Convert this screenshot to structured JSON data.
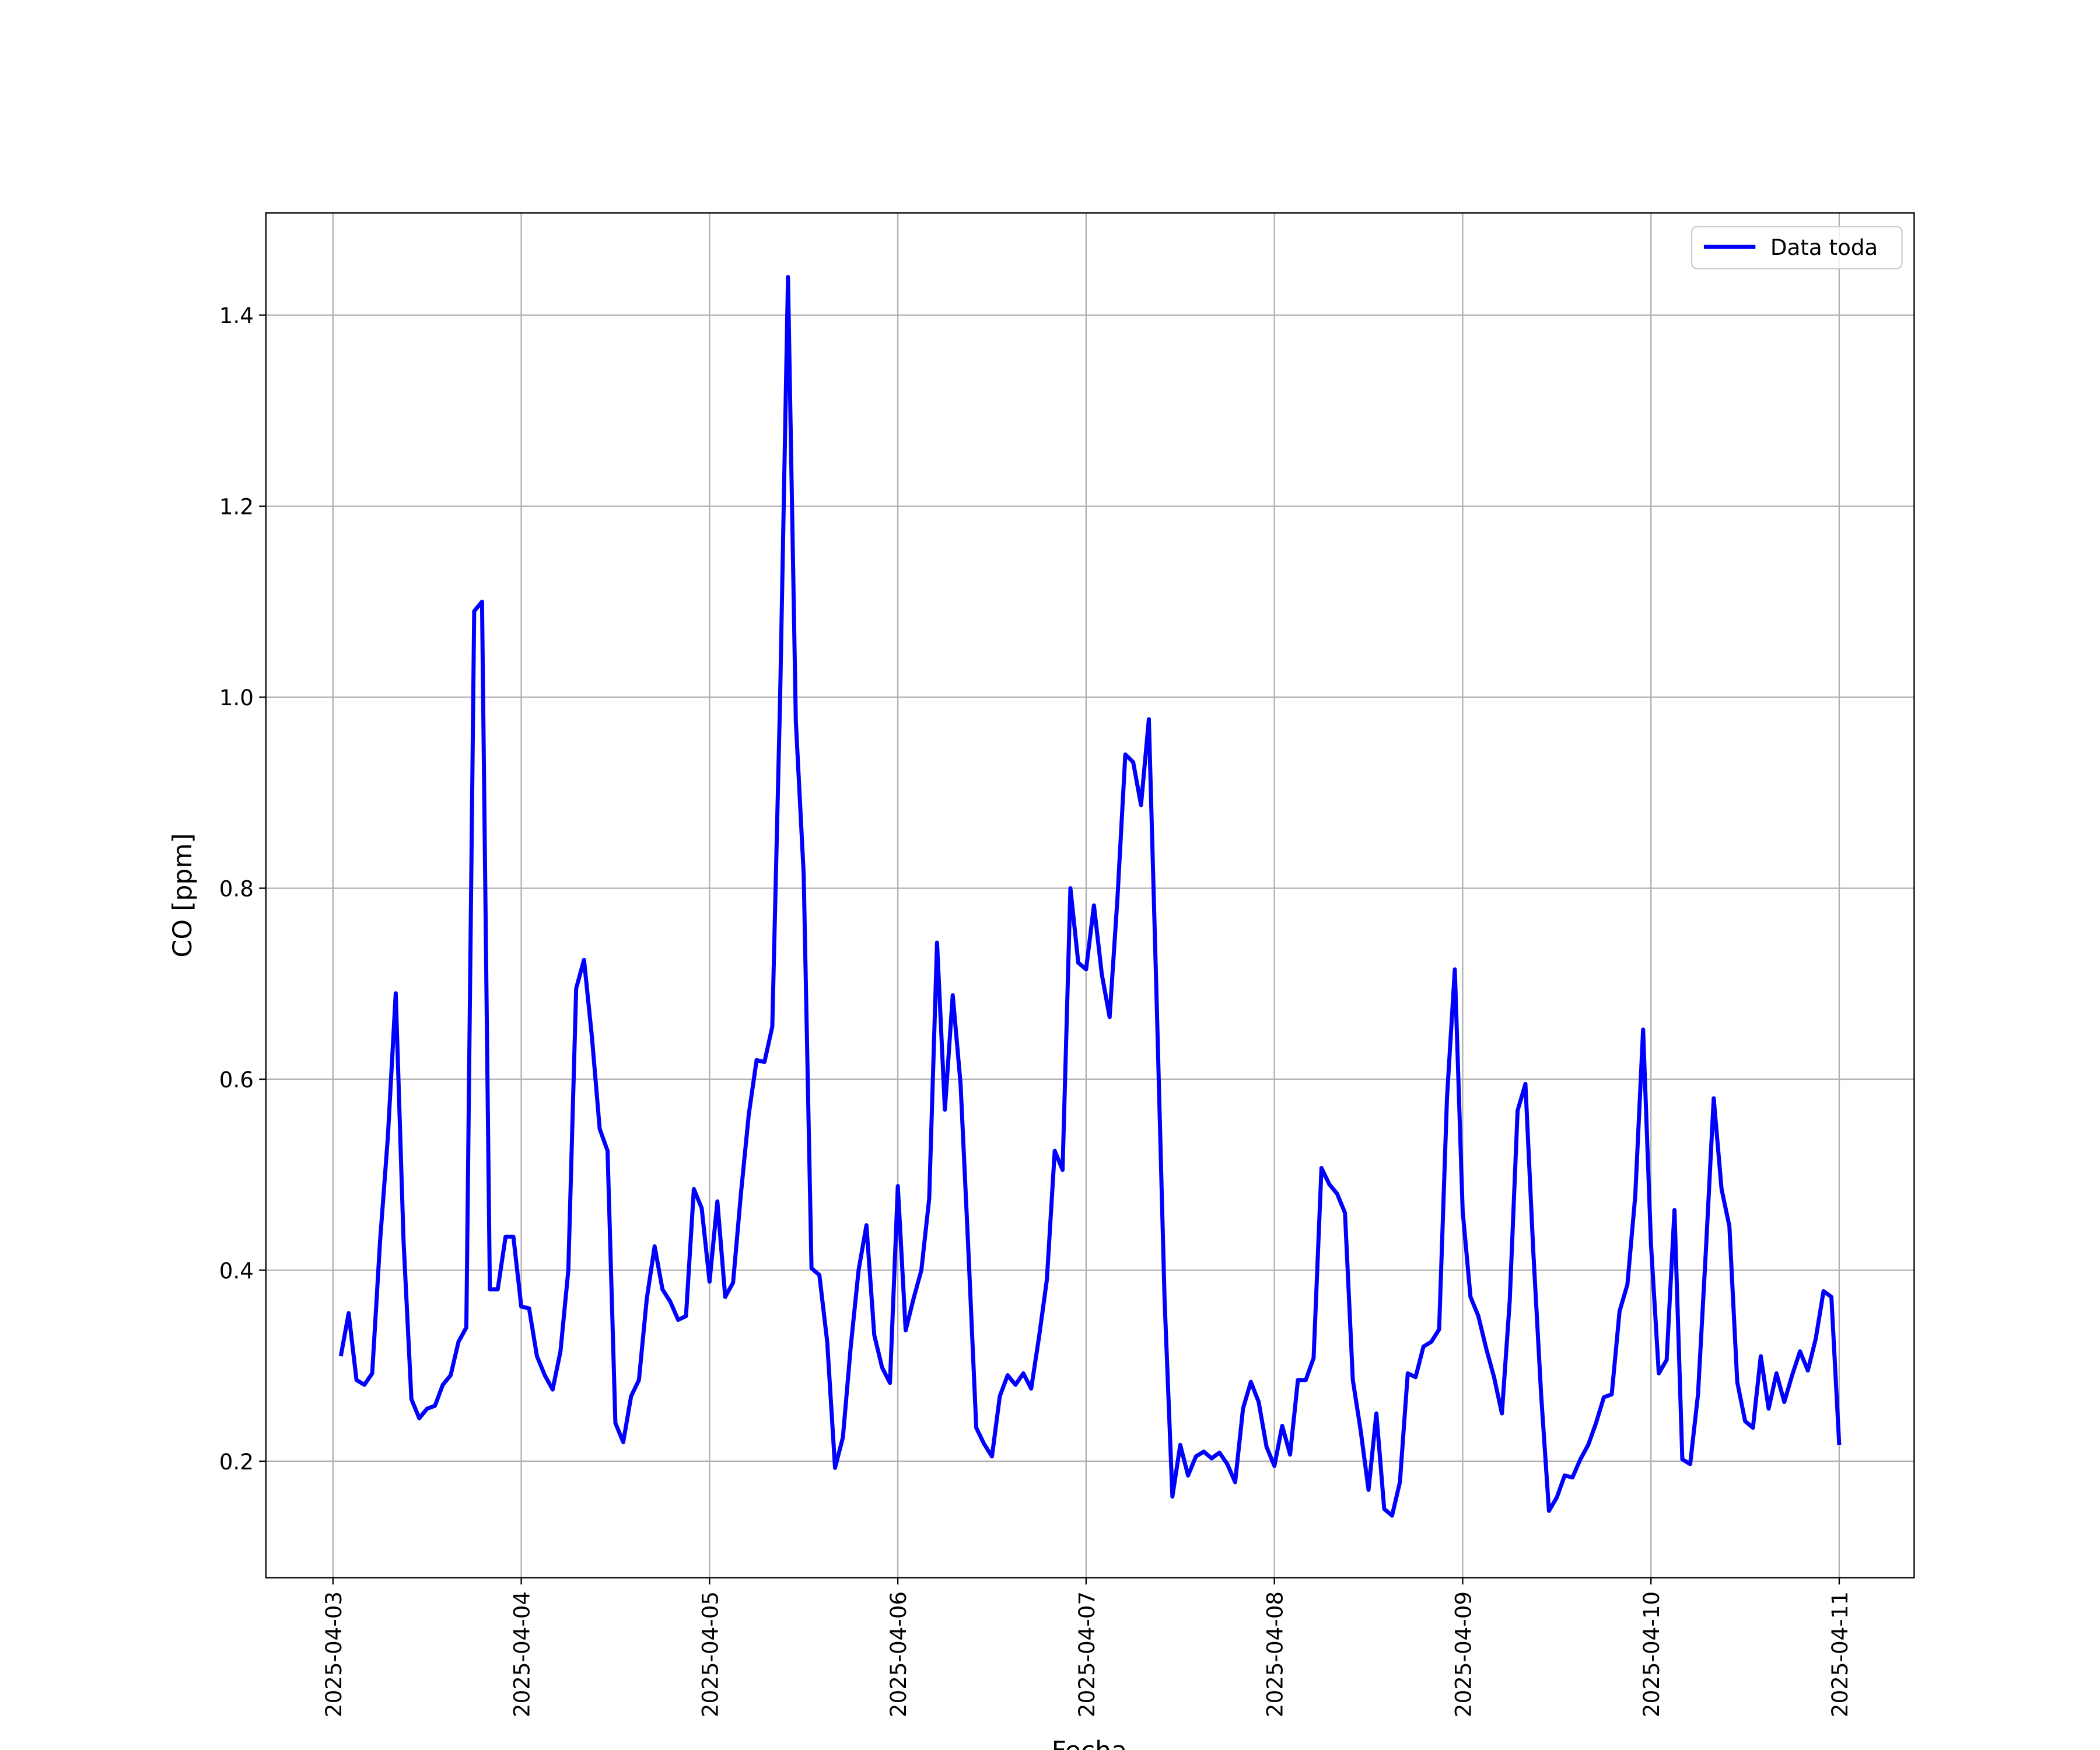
{
  "chart_data": {
    "type": "line",
    "xlabel": "Fecha",
    "ylabel": "CO [ppm]",
    "x": [
      "2025-04-03T01:00",
      "2025-04-03T02:00",
      "2025-04-03T03:00",
      "2025-04-03T04:00",
      "2025-04-03T05:00",
      "2025-04-03T06:00",
      "2025-04-03T07:00",
      "2025-04-03T08:00",
      "2025-04-03T09:00",
      "2025-04-03T10:00",
      "2025-04-03T11:00",
      "2025-04-03T12:00",
      "2025-04-03T13:00",
      "2025-04-03T14:00",
      "2025-04-03T15:00",
      "2025-04-03T16:00",
      "2025-04-03T17:00",
      "2025-04-03T18:00",
      "2025-04-03T19:00",
      "2025-04-03T20:00",
      "2025-04-03T21:00",
      "2025-04-03T22:00",
      "2025-04-03T23:00",
      "2025-04-04T00:00",
      "2025-04-04T01:00",
      "2025-04-04T02:00",
      "2025-04-04T03:00",
      "2025-04-04T04:00",
      "2025-04-04T05:00",
      "2025-04-04T06:00",
      "2025-04-04T07:00",
      "2025-04-04T08:00",
      "2025-04-04T09:00",
      "2025-04-04T10:00",
      "2025-04-04T11:00",
      "2025-04-04T12:00",
      "2025-04-04T13:00",
      "2025-04-04T14:00",
      "2025-04-04T15:00",
      "2025-04-04T16:00",
      "2025-04-04T17:00",
      "2025-04-04T18:00",
      "2025-04-04T19:00",
      "2025-04-04T20:00",
      "2025-04-04T21:00",
      "2025-04-04T22:00",
      "2025-04-04T23:00",
      "2025-04-05T00:00",
      "2025-04-05T01:00",
      "2025-04-05T02:00",
      "2025-04-05T03:00",
      "2025-04-05T04:00",
      "2025-04-05T05:00",
      "2025-04-05T06:00",
      "2025-04-05T07:00",
      "2025-04-05T08:00",
      "2025-04-05T09:00",
      "2025-04-05T10:00",
      "2025-04-05T11:00",
      "2025-04-05T12:00",
      "2025-04-05T13:00",
      "2025-04-05T14:00",
      "2025-04-05T15:00",
      "2025-04-05T16:00",
      "2025-04-05T17:00",
      "2025-04-05T18:00",
      "2025-04-05T19:00",
      "2025-04-05T20:00",
      "2025-04-05T21:00",
      "2025-04-05T22:00",
      "2025-04-05T23:00",
      "2025-04-06T00:00",
      "2025-04-06T01:00",
      "2025-04-06T02:00",
      "2025-04-06T03:00",
      "2025-04-06T04:00",
      "2025-04-06T05:00",
      "2025-04-06T06:00",
      "2025-04-06T07:00",
      "2025-04-06T08:00",
      "2025-04-06T09:00",
      "2025-04-06T10:00",
      "2025-04-06T11:00",
      "2025-04-06T12:00",
      "2025-04-06T13:00",
      "2025-04-06T14:00",
      "2025-04-06T15:00",
      "2025-04-06T16:00",
      "2025-04-06T17:00",
      "2025-04-06T18:00",
      "2025-04-06T19:00",
      "2025-04-06T20:00",
      "2025-04-06T21:00",
      "2025-04-06T22:00",
      "2025-04-06T23:00",
      "2025-04-07T00:00",
      "2025-04-07T01:00",
      "2025-04-07T02:00",
      "2025-04-07T03:00",
      "2025-04-07T04:00",
      "2025-04-07T05:00",
      "2025-04-07T06:00",
      "2025-04-07T07:00",
      "2025-04-07T08:00",
      "2025-04-07T09:00",
      "2025-04-07T10:00",
      "2025-04-07T11:00",
      "2025-04-07T12:00",
      "2025-04-07T13:00",
      "2025-04-07T14:00",
      "2025-04-07T15:00",
      "2025-04-07T16:00",
      "2025-04-07T17:00",
      "2025-04-07T18:00",
      "2025-04-07T19:00",
      "2025-04-07T20:00",
      "2025-04-07T21:00",
      "2025-04-07T22:00",
      "2025-04-07T23:00",
      "2025-04-08T00:00",
      "2025-04-08T01:00",
      "2025-04-08T02:00",
      "2025-04-08T03:00",
      "2025-04-08T04:00",
      "2025-04-08T05:00",
      "2025-04-08T06:00",
      "2025-04-08T07:00",
      "2025-04-08T08:00",
      "2025-04-08T09:00",
      "2025-04-08T10:00",
      "2025-04-08T11:00",
      "2025-04-08T12:00",
      "2025-04-08T13:00",
      "2025-04-08T14:00",
      "2025-04-08T15:00",
      "2025-04-08T16:00",
      "2025-04-08T17:00",
      "2025-04-08T18:00",
      "2025-04-08T19:00",
      "2025-04-08T20:00",
      "2025-04-08T21:00",
      "2025-04-08T22:00",
      "2025-04-08T23:00",
      "2025-04-09T00:00",
      "2025-04-09T01:00",
      "2025-04-09T02:00",
      "2025-04-09T03:00",
      "2025-04-09T04:00",
      "2025-04-09T05:00",
      "2025-04-09T06:00",
      "2025-04-09T07:00",
      "2025-04-09T08:00",
      "2025-04-09T09:00",
      "2025-04-09T10:00",
      "2025-04-09T11:00",
      "2025-04-09T12:00",
      "2025-04-09T13:00",
      "2025-04-09T14:00",
      "2025-04-09T15:00",
      "2025-04-09T16:00",
      "2025-04-09T17:00",
      "2025-04-09T18:00",
      "2025-04-09T19:00",
      "2025-04-09T20:00",
      "2025-04-09T21:00",
      "2025-04-09T22:00",
      "2025-04-09T23:00",
      "2025-04-10T00:00",
      "2025-04-10T01:00",
      "2025-04-10T02:00",
      "2025-04-10T03:00",
      "2025-04-10T04:00",
      "2025-04-10T05:00",
      "2025-04-10T06:00",
      "2025-04-10T07:00",
      "2025-04-10T08:00",
      "2025-04-10T09:00",
      "2025-04-10T10:00",
      "2025-04-10T11:00",
      "2025-04-10T12:00",
      "2025-04-10T13:00",
      "2025-04-10T14:00",
      "2025-04-10T15:00",
      "2025-04-10T16:00",
      "2025-04-10T17:00",
      "2025-04-10T18:00",
      "2025-04-10T19:00",
      "2025-04-10T20:00",
      "2025-04-10T21:00",
      "2025-04-10T22:00",
      "2025-04-10T23:00",
      "2025-04-11T00:00"
    ],
    "series": [
      {
        "name": "Data toda",
        "color": "#0000ff",
        "values": [
          0.31,
          0.355,
          0.285,
          0.28,
          0.292,
          0.43,
          0.54,
          0.69,
          0.43,
          0.265,
          0.245,
          0.255,
          0.258,
          0.28,
          0.29,
          0.325,
          0.34,
          1.09,
          1.1,
          0.38,
          0.38,
          0.435,
          0.435,
          0.362,
          0.36,
          0.31,
          0.29,
          0.275,
          0.315,
          0.4,
          0.695,
          0.725,
          0.645,
          0.548,
          0.525,
          0.24,
          0.22,
          0.268,
          0.285,
          0.37,
          0.425,
          0.38,
          0.367,
          0.348,
          0.352,
          0.485,
          0.465,
          0.388,
          0.472,
          0.372,
          0.387,
          0.48,
          0.563,
          0.62,
          0.618,
          0.655,
          1.0,
          1.44,
          0.975,
          0.815,
          0.402,
          0.395,
          0.325,
          0.193,
          0.225,
          0.32,
          0.4,
          0.447,
          0.332,
          0.298,
          0.282,
          0.488,
          0.337,
          0.37,
          0.4,
          0.475,
          0.743,
          0.568,
          0.688,
          0.595,
          0.42,
          0.235,
          0.218,
          0.205,
          0.268,
          0.29,
          0.28,
          0.292,
          0.276,
          0.33,
          0.39,
          0.525,
          0.505,
          0.8,
          0.722,
          0.715,
          0.782,
          0.71,
          0.665,
          0.79,
          0.94,
          0.932,
          0.887,
          0.977,
          0.68,
          0.37,
          0.163,
          0.217,
          0.185,
          0.205,
          0.21,
          0.203,
          0.209,
          0.197,
          0.178,
          0.255,
          0.283,
          0.262,
          0.215,
          0.195,
          0.237,
          0.207,
          0.285,
          0.285,
          0.308,
          0.507,
          0.49,
          0.48,
          0.46,
          0.285,
          0.232,
          0.17,
          0.25,
          0.15,
          0.143,
          0.178,
          0.292,
          0.288,
          0.32,
          0.325,
          0.338,
          0.58,
          0.715,
          0.462,
          0.372,
          0.352,
          0.318,
          0.288,
          0.25,
          0.368,
          0.567,
          0.595,
          0.42,
          0.27,
          0.148,
          0.162,
          0.185,
          0.183,
          0.202,
          0.217,
          0.24,
          0.267,
          0.27,
          0.357,
          0.385,
          0.478,
          0.652,
          0.428,
          0.292,
          0.306,
          0.463,
          0.202,
          0.197,
          0.27,
          0.42,
          0.58,
          0.485,
          0.446,
          0.283,
          0.242,
          0.235,
          0.31,
          0.255,
          0.292,
          0.262,
          0.29,
          0.315,
          0.295,
          0.328,
          0.378,
          0.372,
          0.217
        ]
      }
    ],
    "xlim": [
      "2025-04-02T15:27",
      "2025-04-11T09:33"
    ],
    "xticks": [
      "2025-04-03",
      "2025-04-04",
      "2025-04-05",
      "2025-04-06",
      "2025-04-07",
      "2025-04-08",
      "2025-04-09",
      "2025-04-10",
      "2025-04-11"
    ],
    "ylim": [
      0.078,
      1.507
    ],
    "yticks": [
      0.2,
      0.4,
      0.6,
      0.8,
      {
        "value": 1,
        "label": "1.0"
      },
      1.2,
      1.4
    ],
    "grid": true,
    "legend": "upper right"
  }
}
